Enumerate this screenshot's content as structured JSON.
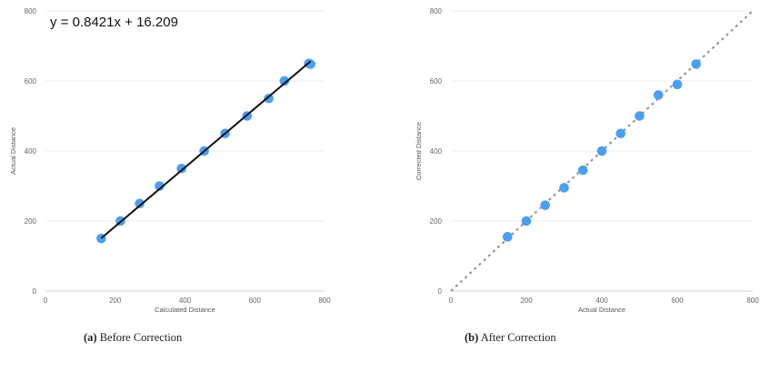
{
  "captions": [
    {
      "label": "(a)",
      "text": "Before Correction"
    },
    {
      "label": "(b)",
      "text": "After Correction"
    }
  ],
  "chart_data": [
    {
      "type": "scatter",
      "title": "",
      "xlabel": "Calculated Distance",
      "ylabel": "Actual Distance",
      "xlim": [
        0,
        800
      ],
      "ylim": [
        0,
        800
      ],
      "xticks": [
        0,
        200,
        400,
        600,
        800
      ],
      "yticks": [
        0,
        200,
        400,
        600,
        800
      ],
      "grid": true,
      "point_color": "#4a9ff0",
      "trendline": {
        "slope": 0.8421,
        "intercept": 16.209,
        "label": "y = 0.8421x + 16.209",
        "color": "#111111"
      },
      "series": [
        {
          "x": [
            160,
            215,
            270,
            327,
            390,
            455,
            515,
            578,
            640,
            685,
            755,
            760
          ],
          "y": [
            150,
            200,
            250,
            300,
            350,
            400,
            450,
            500,
            550,
            600,
            650,
            648
          ]
        }
      ]
    },
    {
      "type": "scatter",
      "title": "",
      "xlabel": "Actual Distance",
      "ylabel": "Corrected Distance",
      "xlim": [
        0,
        800
      ],
      "ylim": [
        0,
        800
      ],
      "xticks": [
        0,
        200,
        400,
        600,
        800
      ],
      "yticks": [
        0,
        200,
        400,
        600,
        800
      ],
      "grid": true,
      "point_color": "#4a9ff0",
      "reference_line": {
        "slope": 1,
        "intercept": 0,
        "style": "dotted",
        "color": "#999999"
      },
      "series": [
        {
          "x": [
            150,
            200,
            250,
            300,
            350,
            400,
            450,
            500,
            550,
            600,
            650
          ],
          "y": [
            155,
            200,
            245,
            295,
            345,
            400,
            450,
            500,
            560,
            590,
            648
          ]
        }
      ]
    }
  ]
}
